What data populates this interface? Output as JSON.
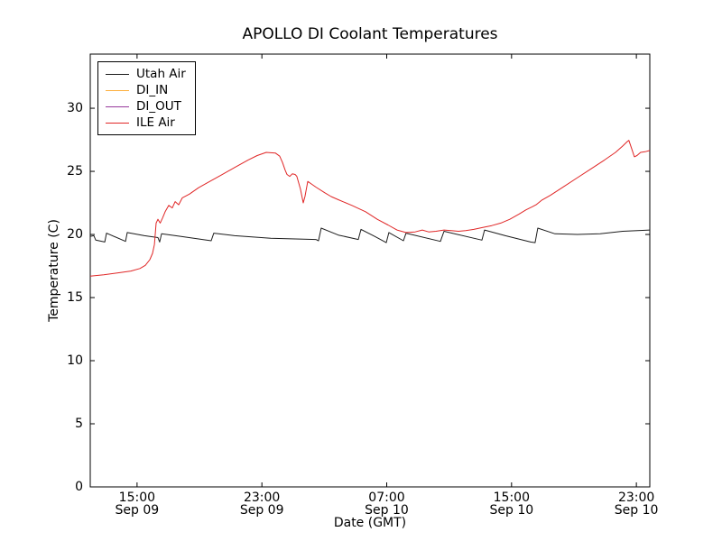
{
  "title": "APOLLO DI Coolant Temperatures",
  "chart_data": {
    "type": "line",
    "title": "APOLLO DI Coolant Temperatures",
    "xlabel": "Date (GMT)",
    "ylabel": "Temperature (C)",
    "x_unit": "hours after Sep 09 12:00 GMT",
    "xlim": [
      0,
      35.86
    ],
    "ylim": [
      0,
      34.29
    ],
    "grid": false,
    "legend_position": "upper left",
    "tick_direction": "in",
    "y_ticks": [
      0,
      5,
      10,
      15,
      20,
      25,
      30
    ],
    "x_ticks": [
      {
        "hour": 3,
        "time": "15:00",
        "date": "Sep 09"
      },
      {
        "hour": 11,
        "time": "23:00",
        "date": "Sep 09"
      },
      {
        "hour": 19,
        "time": "07:00",
        "date": "Sep 10"
      },
      {
        "hour": 27,
        "time": "15:00",
        "date": "Sep 10"
      },
      {
        "hour": 35,
        "time": "23:00",
        "date": "Sep 10"
      }
    ],
    "series": [
      {
        "name": "Utah Air",
        "color": "#1c1c1c",
        "points": [
          [
            0,
            19.85
          ],
          [
            0.23,
            19.9
          ],
          [
            0.35,
            19.55
          ],
          [
            0.93,
            19.4
          ],
          [
            1.04,
            20.1
          ],
          [
            2.26,
            19.45
          ],
          [
            2.37,
            20.15
          ],
          [
            3.47,
            19.9
          ],
          [
            4.34,
            19.75
          ],
          [
            4.45,
            19.4
          ],
          [
            4.57,
            20.05
          ],
          [
            5.78,
            19.85
          ],
          [
            7.75,
            19.5
          ],
          [
            7.92,
            20.1
          ],
          [
            9.25,
            19.9
          ],
          [
            11.57,
            19.7
          ],
          [
            14.46,
            19.6
          ],
          [
            14.63,
            19.5
          ],
          [
            14.8,
            20.5
          ],
          [
            15.9,
            19.95
          ],
          [
            17.18,
            19.6
          ],
          [
            17.35,
            20.4
          ],
          [
            18.22,
            19.85
          ],
          [
            18.97,
            19.35
          ],
          [
            19.14,
            20.15
          ],
          [
            20.07,
            19.5
          ],
          [
            20.24,
            20.1
          ],
          [
            22.44,
            19.45
          ],
          [
            22.67,
            20.25
          ],
          [
            25.1,
            19.55
          ],
          [
            25.27,
            20.35
          ],
          [
            26.6,
            19.9
          ],
          [
            28.22,
            19.4
          ],
          [
            28.51,
            19.35
          ],
          [
            28.68,
            20.5
          ],
          [
            29.78,
            20.05
          ],
          [
            31.23,
            20.0
          ],
          [
            32.68,
            20.05
          ],
          [
            34.12,
            20.25
          ],
          [
            35.86,
            20.35
          ]
        ]
      },
      {
        "name": "DI_IN",
        "color": "#fdae3b",
        "points": []
      },
      {
        "name": "DI_OUT",
        "color": "#97399b",
        "points": []
      },
      {
        "name": "ILE Air",
        "color": "#e02626",
        "points": [
          [
            0,
            16.7
          ],
          [
            0.87,
            16.8
          ],
          [
            1.73,
            16.95
          ],
          [
            2.6,
            17.1
          ],
          [
            3.18,
            17.3
          ],
          [
            3.53,
            17.55
          ],
          [
            3.82,
            18.0
          ],
          [
            3.99,
            18.5
          ],
          [
            4.11,
            19.2
          ],
          [
            4.22,
            20.9
          ],
          [
            4.34,
            21.2
          ],
          [
            4.48,
            20.9
          ],
          [
            4.63,
            21.3
          ],
          [
            4.8,
            21.8
          ],
          [
            5.03,
            22.3
          ],
          [
            5.26,
            22.1
          ],
          [
            5.44,
            22.6
          ],
          [
            5.67,
            22.35
          ],
          [
            5.9,
            22.9
          ],
          [
            6.36,
            23.2
          ],
          [
            6.94,
            23.7
          ],
          [
            7.52,
            24.1
          ],
          [
            8.39,
            24.7
          ],
          [
            9.25,
            25.3
          ],
          [
            10.12,
            25.9
          ],
          [
            10.7,
            26.25
          ],
          [
            11.28,
            26.5
          ],
          [
            11.86,
            26.45
          ],
          [
            12.14,
            26.2
          ],
          [
            12.32,
            25.7
          ],
          [
            12.49,
            25.1
          ],
          [
            12.61,
            24.75
          ],
          [
            12.78,
            24.6
          ],
          [
            12.95,
            24.8
          ],
          [
            13.13,
            24.75
          ],
          [
            13.24,
            24.6
          ],
          [
            13.47,
            23.6
          ],
          [
            13.65,
            22.5
          ],
          [
            13.76,
            23.0
          ],
          [
            13.94,
            24.2
          ],
          [
            14.17,
            24.0
          ],
          [
            14.46,
            23.75
          ],
          [
            15.03,
            23.3
          ],
          [
            15.44,
            23.0
          ],
          [
            15.9,
            22.75
          ],
          [
            16.77,
            22.3
          ],
          [
            17.64,
            21.8
          ],
          [
            18.39,
            21.2
          ],
          [
            19.08,
            20.75
          ],
          [
            19.66,
            20.35
          ],
          [
            20.24,
            20.15
          ],
          [
            20.82,
            20.2
          ],
          [
            21.28,
            20.35
          ],
          [
            21.69,
            20.2
          ],
          [
            22.15,
            20.25
          ],
          [
            22.67,
            20.35
          ],
          [
            23.13,
            20.3
          ],
          [
            23.6,
            20.25
          ],
          [
            24.06,
            20.3
          ],
          [
            24.58,
            20.4
          ],
          [
            25.16,
            20.55
          ],
          [
            25.73,
            20.7
          ],
          [
            26.31,
            20.9
          ],
          [
            26.89,
            21.2
          ],
          [
            27.47,
            21.6
          ],
          [
            27.93,
            21.95
          ],
          [
            28.34,
            22.2
          ],
          [
            28.57,
            22.35
          ],
          [
            28.92,
            22.7
          ],
          [
            29.49,
            23.1
          ],
          [
            30.36,
            23.8
          ],
          [
            31.23,
            24.5
          ],
          [
            32.1,
            25.2
          ],
          [
            32.96,
            25.9
          ],
          [
            33.66,
            26.5
          ],
          [
            34.12,
            27.0
          ],
          [
            34.41,
            27.35
          ],
          [
            34.52,
            27.45
          ],
          [
            34.7,
            26.8
          ],
          [
            34.87,
            26.15
          ],
          [
            35.04,
            26.25
          ],
          [
            35.27,
            26.5
          ],
          [
            35.56,
            26.55
          ],
          [
            35.86,
            26.65
          ]
        ]
      }
    ],
    "legend_labels": [
      "Utah Air",
      "DI_IN",
      "DI_OUT",
      "ILE Air"
    ]
  }
}
